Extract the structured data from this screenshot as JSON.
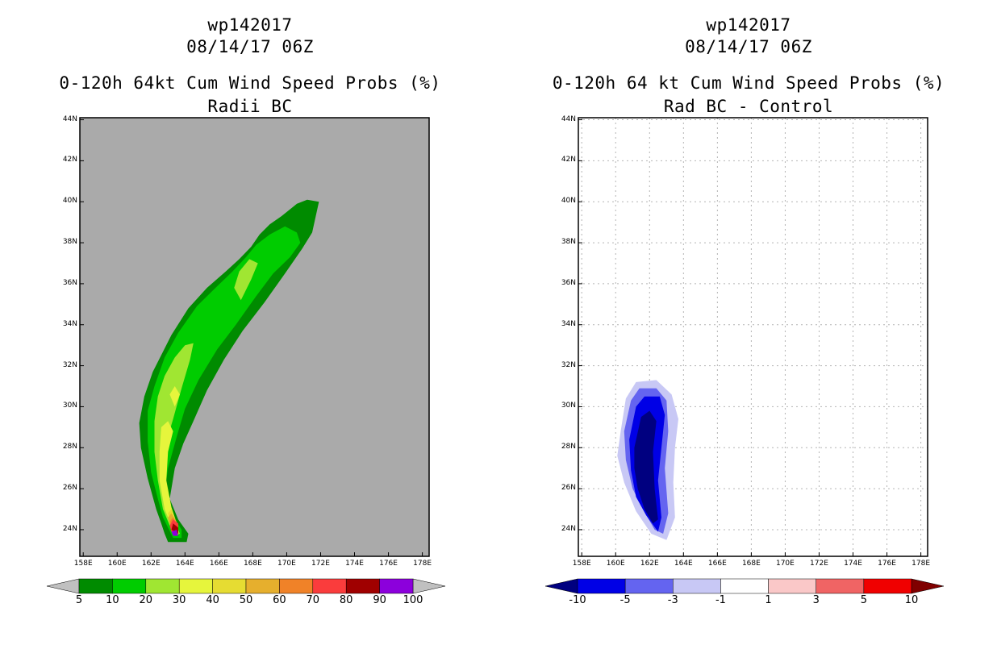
{
  "chart_data": [
    {
      "type": "heatmap",
      "title_lines": [
        "wp142017",
        "08/14/17 06Z",
        "0-120h 64kt Cum Wind Speed Probs (%)",
        "Radii BC"
      ],
      "xlabel": "",
      "ylabel": "",
      "x_ticks": [
        "158E",
        "160E",
        "162E",
        "164E",
        "166E",
        "168E",
        "170E",
        "172E",
        "174E",
        "176E",
        "178E"
      ],
      "y_ticks": [
        "24N",
        "26N",
        "28N",
        "30N",
        "32N",
        "34N",
        "36N",
        "38N",
        "40N",
        "42N",
        "44N"
      ],
      "xlim": [
        157.8,
        178.4
      ],
      "ylim": [
        22.7,
        44.1
      ],
      "grid": false,
      "background_color": "#aaaaaa",
      "colorbar": {
        "labels": [
          "5",
          "10",
          "20",
          "30",
          "40",
          "50",
          "60",
          "70",
          "80",
          "90",
          "100"
        ],
        "colors": [
          "#008b00",
          "#00cc00",
          "#a0e632",
          "#e6f53c",
          "#e6dc32",
          "#e6af2d",
          "#f08228",
          "#fa3c3c",
          "#a00000",
          "#8c00dc"
        ],
        "extend_colors": [
          "#c0c0c0",
          "#c0c0c0"
        ]
      },
      "contours": [
        {
          "level": "5-10",
          "color": "#008b00",
          "points": [
            [
              163.0,
              23.4
            ],
            [
              164.1,
              23.4
            ],
            [
              164.2,
              23.8
            ],
            [
              163.6,
              24.5
            ],
            [
              163.1,
              25.5
            ],
            [
              163.4,
              27.0
            ],
            [
              163.9,
              28.2
            ],
            [
              164.5,
              29.3
            ],
            [
              165.3,
              30.8
            ],
            [
              166.3,
              32.3
            ],
            [
              167.4,
              33.7
            ],
            [
              168.7,
              35.1
            ],
            [
              169.9,
              36.5
            ],
            [
              170.9,
              37.7
            ],
            [
              171.5,
              38.5
            ],
            [
              171.9,
              40.0
            ],
            [
              171.2,
              40.1
            ],
            [
              170.6,
              39.9
            ],
            [
              169.7,
              39.3
            ],
            [
              169.0,
              38.9
            ],
            [
              168.4,
              38.4
            ],
            [
              167.9,
              37.8
            ],
            [
              167.2,
              37.2
            ],
            [
              166.4,
              36.6
            ],
            [
              165.3,
              35.8
            ],
            [
              164.2,
              34.8
            ],
            [
              163.2,
              33.5
            ],
            [
              162.1,
              31.7
            ],
            [
              161.6,
              30.5
            ],
            [
              161.3,
              29.2
            ],
            [
              161.4,
              28.0
            ],
            [
              161.8,
              26.5
            ],
            [
              162.3,
              25.0
            ],
            [
              162.6,
              24.3
            ],
            [
              162.8,
              23.8
            ]
          ]
        },
        {
          "level": "10-20",
          "color": "#00cc00",
          "points": [
            [
              163.3,
              23.6
            ],
            [
              163.8,
              23.6
            ],
            [
              163.8,
              24.0
            ],
            [
              163.2,
              24.8
            ],
            [
              162.8,
              25.8
            ],
            [
              163.0,
              27.0
            ],
            [
              163.5,
              28.5
            ],
            [
              164.0,
              29.9
            ],
            [
              164.8,
              31.3
            ],
            [
              165.9,
              32.8
            ],
            [
              167.0,
              34.0
            ],
            [
              168.2,
              35.4
            ],
            [
              169.2,
              36.5
            ],
            [
              170.2,
              37.3
            ],
            [
              170.8,
              38.0
            ],
            [
              170.6,
              38.5
            ],
            [
              169.9,
              38.8
            ],
            [
              169.0,
              38.4
            ],
            [
              168.2,
              37.9
            ],
            [
              167.6,
              37.3
            ],
            [
              166.8,
              36.6
            ],
            [
              165.8,
              35.8
            ],
            [
              164.7,
              34.9
            ],
            [
              163.6,
              33.6
            ],
            [
              162.8,
              32.4
            ],
            [
              162.2,
              31.0
            ],
            [
              161.8,
              29.8
            ],
            [
              161.8,
              28.3
            ],
            [
              162.0,
              26.8
            ],
            [
              162.4,
              25.5
            ],
            [
              162.7,
              24.6
            ]
          ]
        },
        {
          "level": "20-30",
          "color": "#a0e632",
          "points": [
            [
              163.4,
              23.7
            ],
            [
              163.7,
              23.8
            ],
            [
              163.4,
              24.4
            ],
            [
              162.9,
              25.4
            ],
            [
              162.6,
              26.6
            ],
            [
              162.8,
              28.0
            ],
            [
              163.3,
              29.4
            ],
            [
              163.8,
              30.9
            ],
            [
              164.3,
              32.3
            ],
            [
              164.5,
              33.1
            ],
            [
              164.0,
              33.0
            ],
            [
              163.4,
              32.4
            ],
            [
              162.8,
              31.5
            ],
            [
              162.4,
              30.5
            ],
            [
              162.2,
              29.3
            ],
            [
              162.2,
              27.8
            ],
            [
              162.4,
              26.4
            ],
            [
              162.7,
              25.0
            ],
            [
              163.1,
              24.2
            ]
          ]
        },
        {
          "level": "20-30",
          "color": "#a0e632",
          "points": [
            [
              167.3,
              35.2
            ],
            [
              167.9,
              36.2
            ],
            [
              168.3,
              37.0
            ],
            [
              167.8,
              37.2
            ],
            [
              167.2,
              36.6
            ],
            [
              166.9,
              35.8
            ]
          ]
        },
        {
          "level": "30-40",
          "color": "#e6f53c",
          "points": [
            [
              163.5,
              23.8
            ],
            [
              163.6,
              24.1
            ],
            [
              163.2,
              25.1
            ],
            [
              162.9,
              26.4
            ],
            [
              163.0,
              27.8
            ],
            [
              163.3,
              28.8
            ],
            [
              163.0,
              29.3
            ],
            [
              162.6,
              29.0
            ],
            [
              162.5,
              27.8
            ],
            [
              162.5,
              26.4
            ],
            [
              162.8,
              25.0
            ],
            [
              163.2,
              24.2
            ]
          ]
        },
        {
          "level": "30-40",
          "color": "#e6f53c",
          "points": [
            [
              163.4,
              30.0
            ],
            [
              163.7,
              30.6
            ],
            [
              163.4,
              31.0
            ],
            [
              163.1,
              30.6
            ]
          ]
        },
        {
          "level": "40-50",
          "color": "#e6dc32",
          "points": [
            [
              163.5,
              23.9
            ],
            [
              163.5,
              24.3
            ],
            [
              163.2,
              25.0
            ],
            [
              163.0,
              24.8
            ],
            [
              163.2,
              24.2
            ]
          ]
        },
        {
          "level": "50-60",
          "color": "#e6af2d",
          "points": [
            [
              163.5,
              23.9
            ],
            [
              163.5,
              24.4
            ],
            [
              163.2,
              24.8
            ],
            [
              163.0,
              24.6
            ],
            [
              163.2,
              24.1
            ]
          ]
        },
        {
          "level": "60-70",
          "color": "#f08228",
          "points": [
            [
              163.5,
              23.9
            ],
            [
              163.5,
              24.3
            ],
            [
              163.3,
              24.6
            ],
            [
              163.1,
              24.4
            ],
            [
              163.2,
              24.0
            ]
          ]
        },
        {
          "level": "70-80",
          "color": "#fa3c3c",
          "points": [
            [
              163.6,
              23.8
            ],
            [
              163.6,
              24.3
            ],
            [
              163.3,
              24.5
            ],
            [
              163.1,
              24.2
            ],
            [
              163.2,
              23.9
            ]
          ]
        },
        {
          "level": "80-90",
          "color": "#a00000",
          "points": [
            [
              163.6,
              23.8
            ],
            [
              163.6,
              24.1
            ],
            [
              163.3,
              24.3
            ],
            [
              163.2,
              24.0
            ]
          ]
        },
        {
          "level": "90-100",
          "color": "#8c00dc",
          "points": [
            [
              163.6,
              23.7
            ],
            [
              163.5,
              24.0
            ],
            [
              163.2,
              23.9
            ],
            [
              163.3,
              23.7
            ]
          ]
        }
      ]
    },
    {
      "type": "heatmap",
      "title_lines": [
        "wp142017",
        "08/14/17 06Z",
        "0-120h 64 kt Cum Wind Speed Probs (%)",
        "Rad BC - Control"
      ],
      "xlabel": "",
      "ylabel": "",
      "x_ticks": [
        "158E",
        "160E",
        "162E",
        "164E",
        "166E",
        "168E",
        "170E",
        "172E",
        "174E",
        "176E",
        "178E"
      ],
      "y_ticks": [
        "24N",
        "26N",
        "28N",
        "30N",
        "32N",
        "34N",
        "36N",
        "38N",
        "40N",
        "42N",
        "44N"
      ],
      "xlim": [
        157.8,
        178.4
      ],
      "ylim": [
        22.7,
        44.1
      ],
      "grid": true,
      "background_color": "#ffffff",
      "colorbar": {
        "labels": [
          "-10",
          "-5",
          "-3",
          "-1",
          "1",
          "3",
          "5",
          "10"
        ],
        "colors": [
          "#0000e6",
          "#6464f0",
          "#c8c8f5",
          "#ffffff",
          "#fac8c8",
          "#f06464",
          "#f00000"
        ],
        "extend_colors": [
          "#000080",
          "#800000"
        ]
      },
      "contours": [
        {
          "level": "-3 to -1",
          "color": "#c8c8f5",
          "points": [
            [
              160.3,
              28.8
            ],
            [
              160.6,
              30.4
            ],
            [
              161.2,
              31.2
            ],
            [
              162.4,
              31.3
            ],
            [
              163.3,
              30.6
            ],
            [
              163.7,
              29.4
            ],
            [
              163.5,
              28.0
            ],
            [
              163.4,
              26.3
            ],
            [
              163.5,
              24.6
            ],
            [
              163.0,
              23.5
            ],
            [
              162.1,
              23.8
            ],
            [
              161.2,
              24.9
            ],
            [
              160.5,
              26.3
            ],
            [
              160.1,
              27.6
            ]
          ]
        },
        {
          "level": "-5 to -3",
          "color": "#6464f0",
          "points": [
            [
              160.5,
              28.8
            ],
            [
              160.9,
              30.3
            ],
            [
              161.4,
              30.9
            ],
            [
              162.4,
              30.9
            ],
            [
              163.0,
              30.3
            ],
            [
              163.1,
              28.8
            ],
            [
              162.9,
              27.0
            ],
            [
              163.1,
              24.8
            ],
            [
              162.8,
              23.8
            ],
            [
              162.3,
              24.0
            ],
            [
              161.6,
              25.0
            ],
            [
              161.0,
              26.0
            ],
            [
              160.6,
              27.4
            ]
          ]
        },
        {
          "level": "-10 to -5",
          "color": "#0000e6",
          "points": [
            [
              160.8,
              28.4
            ],
            [
              161.2,
              30.0
            ],
            [
              161.7,
              30.5
            ],
            [
              162.6,
              30.5
            ],
            [
              162.9,
              29.6
            ],
            [
              162.7,
              28.0
            ],
            [
              162.5,
              26.4
            ],
            [
              162.7,
              24.6
            ],
            [
              162.5,
              23.9
            ],
            [
              161.8,
              24.7
            ],
            [
              161.2,
              25.6
            ],
            [
              160.9,
              26.9
            ]
          ]
        },
        {
          "level": "< -10",
          "color": "#000080",
          "points": [
            [
              161.1,
              28.0
            ],
            [
              161.5,
              29.5
            ],
            [
              162.0,
              29.8
            ],
            [
              162.4,
              29.3
            ],
            [
              162.2,
              27.8
            ],
            [
              162.3,
              26.0
            ],
            [
              162.5,
              24.5
            ],
            [
              162.2,
              24.3
            ],
            [
              161.7,
              25.0
            ],
            [
              161.3,
              26.0
            ],
            [
              161.1,
              27.0
            ]
          ]
        }
      ]
    }
  ]
}
